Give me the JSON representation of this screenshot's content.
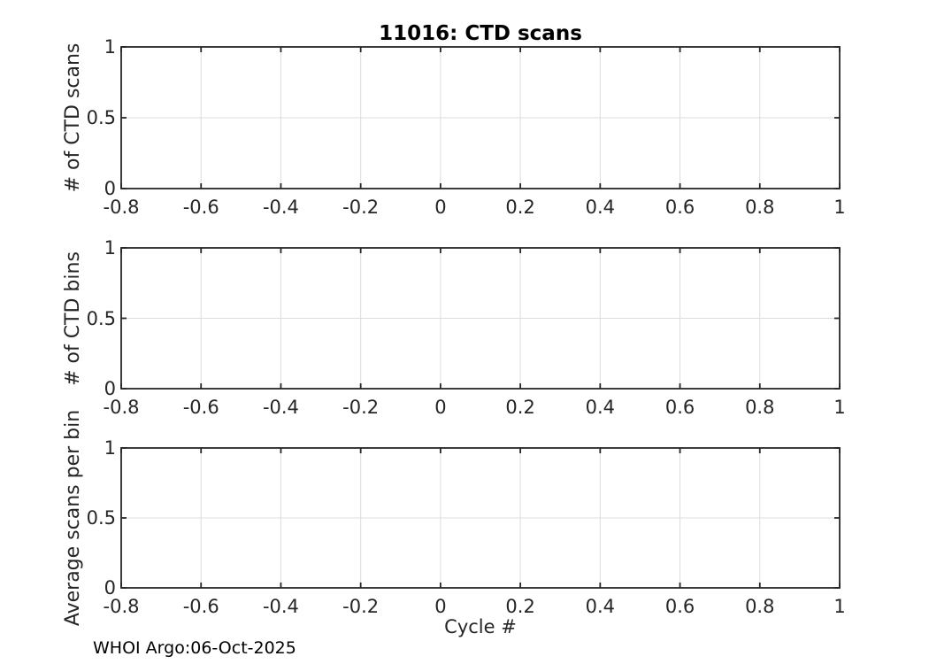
{
  "figure": {
    "title": "11016: CTD scans",
    "xlabel": "Cycle #",
    "footer": "WHOI Argo:06-Oct-2025",
    "colors": {
      "background": "#ffffff",
      "axis": "#262626",
      "grid": "#dcdcdc",
      "tick_text": "#262626",
      "title_text": "#000000"
    }
  },
  "chart_data": [
    {
      "type": "line",
      "title": "11016: CTD scans",
      "ylabel": "# of CTD scans",
      "xlabel": "",
      "xlim": [
        -0.8,
        1
      ],
      "ylim": [
        0,
        1
      ],
      "xticks": [
        -0.8,
        -0.6,
        -0.4,
        -0.2,
        0,
        0.2,
        0.4,
        0.6,
        0.8,
        1
      ],
      "xtick_labels": [
        "-0.8",
        "-0.6",
        "-0.4",
        "-0.2",
        "0",
        "0.2",
        "0.4",
        "0.6",
        "0.8",
        "1"
      ],
      "yticks": [
        0,
        0.5,
        1
      ],
      "ytick_labels": [
        "0",
        "0.5",
        "1"
      ],
      "grid": true,
      "box": true,
      "legend": null,
      "series": []
    },
    {
      "type": "line",
      "title": "",
      "ylabel": "# of CTD bins",
      "xlabel": "",
      "xlim": [
        -0.8,
        1
      ],
      "ylim": [
        0,
        1
      ],
      "xticks": [
        -0.8,
        -0.6,
        -0.4,
        -0.2,
        0,
        0.2,
        0.4,
        0.6,
        0.8,
        1
      ],
      "xtick_labels": [
        "-0.8",
        "-0.6",
        "-0.4",
        "-0.2",
        "0",
        "0.2",
        "0.4",
        "0.6",
        "0.8",
        "1"
      ],
      "yticks": [
        0,
        0.5,
        1
      ],
      "ytick_labels": [
        "0",
        "0.5",
        "1"
      ],
      "grid": true,
      "box": true,
      "legend": null,
      "series": []
    },
    {
      "type": "line",
      "title": "",
      "ylabel": "Average scans per bin",
      "xlabel": "Cycle #",
      "xlim": [
        -0.8,
        1
      ],
      "ylim": [
        0,
        1
      ],
      "xticks": [
        -0.8,
        -0.6,
        -0.4,
        -0.2,
        0,
        0.2,
        0.4,
        0.6,
        0.8,
        1
      ],
      "xtick_labels": [
        "-0.8",
        "-0.6",
        "-0.4",
        "-0.2",
        "0",
        "0.2",
        "0.4",
        "0.6",
        "0.8",
        "1"
      ],
      "yticks": [
        0,
        0.5,
        1
      ],
      "ytick_labels": [
        "0",
        "0.5",
        "1"
      ],
      "grid": true,
      "box": true,
      "legend": null,
      "series": []
    }
  ]
}
